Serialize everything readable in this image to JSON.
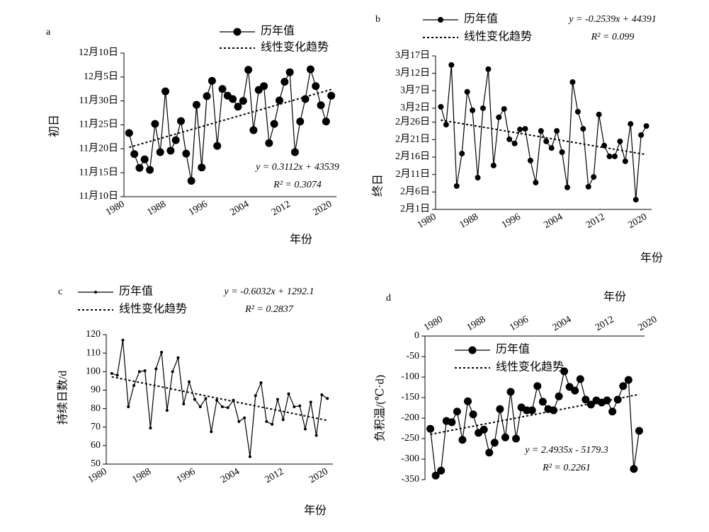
{
  "chart_data": [
    {
      "type": "line",
      "label": "a",
      "x_label": "年份",
      "y_label": "初日",
      "x": [
        1981,
        1982,
        1983,
        1984,
        1985,
        1986,
        1987,
        1988,
        1989,
        1990,
        1991,
        1992,
        1993,
        1994,
        1995,
        1996,
        1997,
        1998,
        1999,
        2000,
        2001,
        2002,
        2003,
        2004,
        2005,
        2006,
        2007,
        2008,
        2009,
        2010,
        2011,
        2012,
        2013,
        2014,
        2015,
        2016,
        2017,
        2018,
        2019,
        2020
      ],
      "xlim": [
        1980,
        2021
      ],
      "xticks": [
        1980,
        1988,
        1996,
        2004,
        2012,
        2020
      ],
      "ylim": [
        10,
        40
      ],
      "yticks": [
        {
          "value": 10,
          "label": "11月10日"
        },
        {
          "value": 15,
          "label": "11月15日"
        },
        {
          "value": 20,
          "label": "11月20日"
        },
        {
          "value": 25,
          "label": "11月25日"
        },
        {
          "value": 30,
          "label": "11月30日"
        },
        {
          "value": 35,
          "label": "12月5日"
        },
        {
          "value": 40,
          "label": "12月10日"
        }
      ],
      "series": [
        {
          "name": "历年值",
          "color": "#000000",
          "values": [
            23.3,
            18.9,
            16.0,
            17.8,
            15.6,
            25.2,
            19.3,
            32.0,
            19.6,
            21.8,
            25.8,
            19.0,
            13.3,
            29.2,
            16.1,
            31.0,
            34.2,
            20.6,
            32.5,
            31.1,
            30.4,
            28.8,
            30.0,
            36.5,
            23.9,
            32.3,
            33.1,
            21.2,
            25.2,
            30.1,
            34.0,
            36.0,
            19.3,
            25.7,
            30.4,
            36.6,
            33.1,
            29.1,
            25.7,
            31.1
          ]
        },
        {
          "name": "线性变化趋势",
          "color": "#000000",
          "dashed": true,
          "x": [
            1981,
            2020
          ],
          "values": [
            20.3,
            32.4
          ]
        }
      ],
      "annotations": [
        "y = 0.3112x + 43539",
        "R² = 0.3074"
      ]
    },
    {
      "type": "line",
      "label": "b",
      "x_label": "年份",
      "y_label": "终日",
      "x": [
        1981,
        1982,
        1983,
        1984,
        1985,
        1986,
        1987,
        1988,
        1989,
        1990,
        1991,
        1992,
        1993,
        1994,
        1995,
        1996,
        1997,
        1998,
        1999,
        2000,
        2001,
        2002,
        2003,
        2004,
        2005,
        2006,
        2007,
        2008,
        2009,
        2010,
        2011,
        2012,
        2013,
        2014,
        2015,
        2016,
        2017,
        2018,
        2019,
        2020
      ],
      "xlim": [
        1980,
        2021
      ],
      "xticks": [
        1980,
        1988,
        1996,
        2004,
        2012,
        2020
      ],
      "ylim": [
        1,
        45
      ],
      "yticks": [
        {
          "value": 1,
          "label": "2月1日"
        },
        {
          "value": 6,
          "label": "2月6日"
        },
        {
          "value": 11,
          "label": "2月11日"
        },
        {
          "value": 16,
          "label": "2月16日"
        },
        {
          "value": 21,
          "label": "2月21日"
        },
        {
          "value": 26,
          "label": "2月26日"
        },
        {
          "value": 30,
          "label": "3月2日"
        },
        {
          "value": 35,
          "label": "3月7日"
        },
        {
          "value": 40,
          "label": "3月12日"
        },
        {
          "value": 45,
          "label": "3月17日"
        }
      ],
      "series": [
        {
          "name": "历年值",
          "color": "#000000",
          "values": [
            30.4,
            25.3,
            42.4,
            7.7,
            17.0,
            34.7,
            29.4,
            10.1,
            30.0,
            41.2,
            13.6,
            27.4,
            29.8,
            21.1,
            19.9,
            23.9,
            24.1,
            15.0,
            8.7,
            23.5,
            20.5,
            18.6,
            23.5,
            17.4,
            7.3,
            37.5,
            29.0,
            24.1,
            7.5,
            10.3,
            28.2,
            19.3,
            16.2,
            16.2,
            20.5,
            14.8,
            25.5,
            3.8,
            22.3,
            24.9
          ]
        },
        {
          "name": "线性变化趋势",
          "color": "#000000",
          "dashed": true,
          "x": [
            1981,
            2020
          ],
          "values": [
            26.6,
            16.7
          ]
        }
      ],
      "annotations": [
        "y = -0.2539x + 44391",
        "R² = 0.099"
      ]
    },
    {
      "type": "line",
      "label": "c",
      "x_label": "年份",
      "y_label": "持续日数/d",
      "x": [
        1981,
        1982,
        1983,
        1984,
        1985,
        1986,
        1987,
        1988,
        1989,
        1990,
        1991,
        1992,
        1993,
        1994,
        1995,
        1996,
        1997,
        1998,
        1999,
        2000,
        2001,
        2002,
        2003,
        2004,
        2005,
        2006,
        2007,
        2008,
        2009,
        2010,
        2011,
        2012,
        2013,
        2014,
        2015,
        2016,
        2017,
        2018,
        2019,
        2020
      ],
      "xlim": [
        1980,
        2021
      ],
      "xticks": [
        1980,
        1988,
        1996,
        2004,
        2012,
        2020
      ],
      "ylim": [
        50,
        120
      ],
      "yticks": [
        50,
        60,
        70,
        80,
        90,
        100,
        110,
        120
      ],
      "series": [
        {
          "name": "历年值",
          "color": "#000000",
          "values": [
            99,
            98,
            117,
            81,
            92.5,
            100,
            100.5,
            69.5,
            101.5,
            110.5,
            79,
            100,
            107.5,
            82.5,
            94.5,
            85,
            81,
            85.5,
            67.5,
            84.5,
            81,
            80.5,
            84.5,
            73,
            75,
            54,
            87,
            94,
            73,
            71.5,
            85,
            74,
            88,
            81,
            81.5,
            69,
            83.5,
            65.5,
            87.5,
            85.5
          ]
        },
        {
          "name": "线性变化趋势",
          "color": "#000000",
          "dashed": true,
          "x": [
            1981,
            2020
          ],
          "values": [
            97.2,
            73.6
          ]
        }
      ],
      "annotations": [
        "y = -0.6032x + 1292.1",
        "R² = 0.2837"
      ]
    },
    {
      "type": "line",
      "label": "d",
      "x_label": "年份",
      "y_label": "负积温/(℃·d)",
      "x_axis_position": "top",
      "x": [
        1981,
        1982,
        1983,
        1984,
        1985,
        1986,
        1987,
        1988,
        1989,
        1990,
        1991,
        1992,
        1993,
        1994,
        1995,
        1996,
        1997,
        1998,
        1999,
        2000,
        2001,
        2002,
        2003,
        2004,
        2005,
        2006,
        2007,
        2008,
        2009,
        2010,
        2011,
        2012,
        2013,
        2014,
        2015,
        2016,
        2017,
        2018,
        2019,
        2020
      ],
      "xlim": [
        1980,
        2021
      ],
      "xticks": [
        1980,
        1988,
        1996,
        2004,
        2012,
        2020
      ],
      "ylim": [
        -350,
        0
      ],
      "yticks": [
        -350,
        -300,
        -250,
        -200,
        -150,
        -100,
        -50,
        0
      ],
      "series": [
        {
          "name": "历年值",
          "color": "#000000",
          "values": [
            -226,
            -340,
            -328,
            -207,
            -210,
            -184,
            -253,
            -159,
            -191,
            -236,
            -228,
            -284,
            -260,
            -178,
            -247,
            -136,
            -250,
            -174,
            -181,
            -181,
            -122,
            -160,
            -178,
            -181,
            -147,
            -86,
            -124,
            -133,
            -105,
            -155,
            -167,
            -157,
            -162,
            -157,
            -184,
            -155,
            -122,
            -107,
            -324,
            -231
          ]
        },
        {
          "name": "线性变化趋势",
          "color": "#000000",
          "dashed": true,
          "x": [
            1981,
            2020
          ],
          "values": [
            -239.7,
            -142.4
          ]
        }
      ],
      "annotations": [
        "y = 2.4935x - 5179.3",
        "R² = 0.2261"
      ]
    }
  ]
}
